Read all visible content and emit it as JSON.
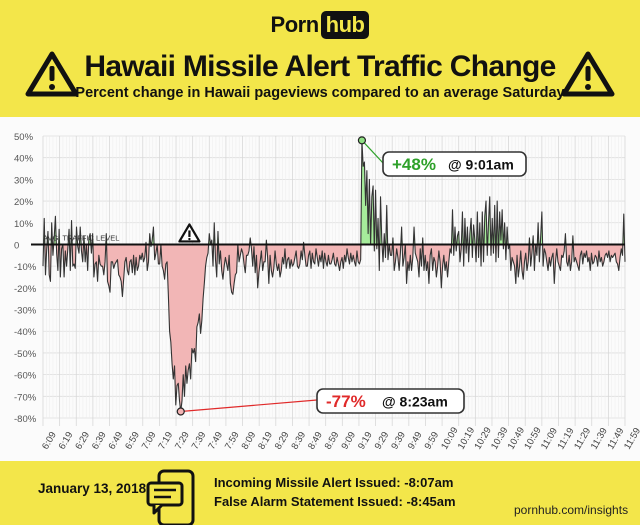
{
  "header": {
    "logo_text_1": "Porn",
    "logo_text_2": "hub",
    "title": "Hawaii Missile Alert Traffic Change",
    "subtitle": "Percent change in Hawaii pageviews compared to an average Saturday"
  },
  "footer": {
    "date": "January 13, 2018",
    "alert_label": "Incoming Missile Alert Issued:",
    "alert_time": "-8:07am",
    "false_alarm_label": "False Alarm Statement Issued:",
    "false_alarm_time": "-8:45am",
    "url": "pornhub.com/insights"
  },
  "colors": {
    "brand_yellow": "#f3e64a",
    "positive_fill": "#a6ec9b",
    "negative_fill": "#f2b6b6",
    "line": "#333333",
    "positive_text": "#2ea12a",
    "negative_text": "#e02a2a"
  },
  "chart_data": {
    "type": "area",
    "title": "",
    "xlabel": "",
    "ylabel": "",
    "baseline_label": "AVG. TRAFFIC LEVEL",
    "ylim": [
      -80,
      50
    ],
    "y_ticks": [
      50,
      40,
      30,
      20,
      10,
      0,
      -10,
      -20,
      -30,
      -40,
      -50,
      -60,
      -70,
      -80
    ],
    "y_tick_labels": [
      "50%",
      "40%",
      "30%",
      "20%",
      "10%",
      "0",
      "-10%",
      "-20%",
      "-30%",
      "-40%",
      "-50%",
      "-60%",
      "-70%",
      "-80%"
    ],
    "x_tick_labels": [
      "6:09",
      "6:19",
      "6:29",
      "6:39",
      "6:49",
      "6:59",
      "7:09",
      "7:19",
      "7:29",
      "7:39",
      "7:49",
      "7:59",
      "8:09",
      "8:19",
      "8:29",
      "8:39",
      "8:49",
      "8:59",
      "9:09",
      "9:19",
      "9:29",
      "9:39",
      "9:49",
      "9:59",
      "10:09",
      "10:19",
      "10:29",
      "10:39",
      "10:49",
      "10:59",
      "11:09",
      "11:19",
      "11:29",
      "11:39",
      "11:49",
      "11:59"
    ],
    "x_start_minute": "6:09",
    "x_end_minute": "11:59",
    "series": [
      {
        "values": [
          -10,
          12,
          -14,
          -2,
          6,
          -14,
          -17,
          10,
          -5,
          3,
          13,
          -4,
          -12,
          7,
          -15,
          -2,
          0,
          -15,
          -3,
          -10,
          -2,
          7,
          -12,
          11,
          -10,
          -9,
          -11,
          8,
          -1,
          -4,
          8,
          -3,
          -8,
          4,
          -8,
          0,
          -12,
          3,
          5,
          -4,
          5,
          -15,
          -9,
          -8,
          -17,
          -5,
          -9,
          -10,
          -10,
          -14,
          -8,
          5,
          -17,
          -19,
          -22,
          -8,
          -8,
          -11,
          -9,
          -8,
          -7,
          -14,
          -15,
          -17,
          -24,
          -16,
          -8,
          -6,
          -12,
          -14,
          -8,
          -7,
          -13,
          -5,
          -14,
          -6,
          -12,
          -10,
          -5,
          -7,
          -4,
          -8,
          -6,
          1,
          -12,
          -8,
          5,
          -1,
          2,
          8,
          -7,
          -4,
          0,
          -9,
          -9,
          0,
          -10,
          -12,
          -16,
          -9,
          -8,
          -23,
          -40,
          -45,
          -55,
          -62,
          -56,
          -74,
          -65,
          -64,
          -72,
          -77,
          -72,
          -60,
          -70,
          -56,
          -64,
          -58,
          -55,
          -62,
          -48,
          -50,
          -48,
          -54,
          -38,
          -36,
          -32,
          -41,
          -35,
          -25,
          -18,
          -10,
          -6,
          -4,
          5,
          0,
          2,
          -10,
          10,
          -7,
          -15,
          6,
          -9,
          -3,
          -12,
          -16,
          -10,
          -6,
          -9,
          -12,
          -5,
          -18,
          -22,
          -23,
          -18,
          -14,
          -13,
          0,
          -8,
          -5,
          -2,
          -4,
          -9,
          -13,
          -5,
          -5,
          -3,
          3,
          -2,
          -10,
          -1,
          -13,
          -5,
          -20,
          -13,
          -8,
          -3,
          -12,
          -8,
          -8,
          2,
          -6,
          -18,
          -5,
          -12,
          -15,
          -11,
          -3,
          -9,
          -12,
          -9,
          -15,
          -12,
          -6,
          -9,
          -2,
          -11,
          -7,
          -6,
          -11,
          -7,
          -10,
          -9,
          -6,
          -3,
          -10,
          -11,
          -9,
          -3,
          -7,
          1,
          -5,
          -10,
          -10,
          -5,
          -3,
          -11,
          -4,
          -8,
          -9,
          -2,
          -6,
          -10,
          -5,
          -8,
          -3,
          -11,
          -4,
          -8,
          -10,
          -5,
          -9,
          -9,
          -7,
          -4,
          -9,
          -10,
          -6,
          -9,
          -12,
          -8,
          -6,
          -11,
          -5,
          -8,
          -2,
          -6,
          -9,
          -4,
          -8,
          -5,
          -8,
          -10,
          -3,
          -8,
          -9,
          -7,
          48,
          36,
          38,
          18,
          34,
          5,
          30,
          0,
          22,
          27,
          -3,
          25,
          -2,
          12,
          -12,
          22,
          2,
          -8,
          5,
          -6,
          18,
          -7,
          0,
          -5,
          -5,
          3,
          -12,
          -8,
          -2,
          -6,
          -12,
          -4,
          8,
          -10,
          -6,
          0,
          -18,
          -8,
          -12,
          -5,
          -12,
          -6,
          8,
          -4,
          -6,
          -8,
          -15,
          -2,
          -10,
          3,
          -12,
          -5,
          -12,
          -8,
          -18,
          -5,
          -2,
          -12,
          -6,
          -8,
          -15,
          -10,
          -3,
          -8,
          -20,
          -10,
          -5,
          -12,
          -8,
          -15,
          -8,
          -2,
          -4,
          16,
          -5,
          8,
          -3,
          4,
          6,
          -8,
          -2,
          15,
          -10,
          12,
          -4,
          8,
          -8,
          5,
          12,
          -6,
          9,
          2,
          -8,
          15,
          -6,
          10,
          -10,
          15,
          -8,
          13,
          20,
          -5,
          10,
          22,
          -5,
          12,
          -4,
          18,
          -8,
          20,
          -6,
          15,
          2,
          16,
          -2,
          10,
          -7,
          8,
          -2,
          0,
          -12,
          -6,
          -8,
          -10,
          -18,
          -5,
          -15,
          -10,
          -3,
          -12,
          -16,
          -8,
          -4,
          -12,
          -8,
          3,
          -10,
          -4,
          4,
          -12,
          0,
          -5,
          10,
          -8,
          3,
          15,
          -10,
          -2,
          -4,
          -8,
          -12,
          -6,
          -10,
          -6,
          -4,
          -18,
          -8,
          -2,
          -8,
          -10,
          -12,
          -5,
          -6,
          -3,
          5,
          -8,
          -10,
          -5,
          -12,
          -8,
          4,
          -8,
          -6,
          -8,
          -10,
          -12,
          -5,
          -3,
          -9,
          -4,
          -6,
          -3,
          -8,
          -6,
          -12,
          -4,
          -9,
          -8,
          -5,
          -6,
          -10,
          -3,
          -8,
          -6,
          -10,
          -8,
          -5,
          -4,
          -6,
          -3,
          -8,
          -5,
          -6,
          -5,
          -4,
          -8,
          -9,
          -12,
          -6,
          -2,
          -5,
          14,
          -8
        ]
      }
    ],
    "annotations": [
      {
        "value_text": "+48%",
        "time_text": "@ 9:01am",
        "value": 48
      },
      {
        "value_text": "-77%",
        "time_text": "@ 8:23am",
        "value": -77
      }
    ]
  }
}
